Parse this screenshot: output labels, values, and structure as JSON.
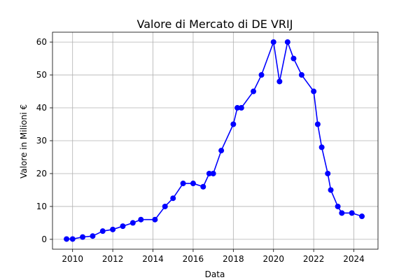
{
  "chart_data": {
    "type": "line",
    "title": "Valore di Mercato di DE VRIJ",
    "xlabel": "Data",
    "ylabel": "Valore in Milioni €",
    "xlim": [
      2009.0,
      2025.2
    ],
    "ylim": [
      -3,
      63
    ],
    "xticks": [
      2010,
      2012,
      2014,
      2016,
      2018,
      2020,
      2022,
      2024
    ],
    "yticks": [
      0,
      10,
      20,
      30,
      40,
      50,
      60
    ],
    "grid": true,
    "series": [
      {
        "color": "#0000ff",
        "marker": "circle",
        "points": [
          [
            2009.7,
            0.1
          ],
          [
            2010.0,
            0.1
          ],
          [
            2010.5,
            0.7
          ],
          [
            2011.0,
            1.0
          ],
          [
            2011.5,
            2.5
          ],
          [
            2012.0,
            3.0
          ],
          [
            2012.5,
            4.0
          ],
          [
            2013.0,
            5.0
          ],
          [
            2013.4,
            6.0
          ],
          [
            2014.1,
            6.0
          ],
          [
            2014.6,
            10.0
          ],
          [
            2015.0,
            12.5
          ],
          [
            2015.5,
            17.0
          ],
          [
            2016.0,
            17.0
          ],
          [
            2016.5,
            16.0
          ],
          [
            2016.8,
            20.0
          ],
          [
            2017.0,
            20.0
          ],
          [
            2017.4,
            27.0
          ],
          [
            2018.0,
            35.0
          ],
          [
            2018.2,
            40.0
          ],
          [
            2018.4,
            40.0
          ],
          [
            2019.0,
            45.0
          ],
          [
            2019.4,
            50.0
          ],
          [
            2020.0,
            60.0
          ],
          [
            2020.3,
            48.0
          ],
          [
            2020.7,
            60.0
          ],
          [
            2021.0,
            55.0
          ],
          [
            2021.4,
            50.0
          ],
          [
            2022.0,
            45.0
          ],
          [
            2022.2,
            35.0
          ],
          [
            2022.4,
            28.0
          ],
          [
            2022.7,
            20.0
          ],
          [
            2022.85,
            15.0
          ],
          [
            2023.2,
            10.0
          ],
          [
            2023.4,
            8.0
          ],
          [
            2023.9,
            8.0
          ],
          [
            2024.4,
            7.0
          ]
        ]
      }
    ]
  }
}
